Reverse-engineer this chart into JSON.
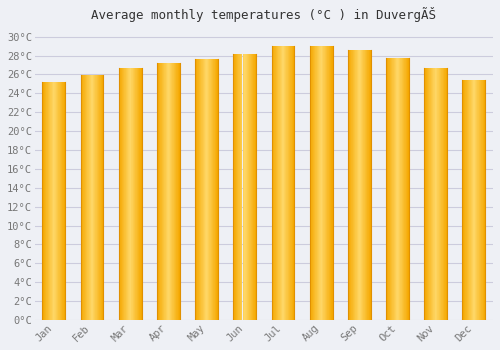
{
  "months": [
    "Jan",
    "Feb",
    "Mar",
    "Apr",
    "May",
    "Jun",
    "Jul",
    "Aug",
    "Sep",
    "Oct",
    "Nov",
    "Dec"
  ],
  "temperatures": [
    25.2,
    25.9,
    26.7,
    27.2,
    27.6,
    28.2,
    29.0,
    29.0,
    28.6,
    27.7,
    26.7,
    25.4
  ],
  "bar_color_left": "#F5A800",
  "bar_color_mid": "#FFD060",
  "bar_color_right": "#F5A800",
  "title": "Average monthly temperatures (°C ) in Duvergé́",
  "ylim": [
    0,
    30
  ],
  "ytick_max": 30,
  "ytick_step": 2,
  "background_color": "#eef0f5",
  "plot_bg_color": "#eef0f5",
  "grid_color": "#ccccdd",
  "tick_color": "#777777",
  "title_color": "#333333",
  "font_family": "monospace",
  "bar_width": 0.6
}
